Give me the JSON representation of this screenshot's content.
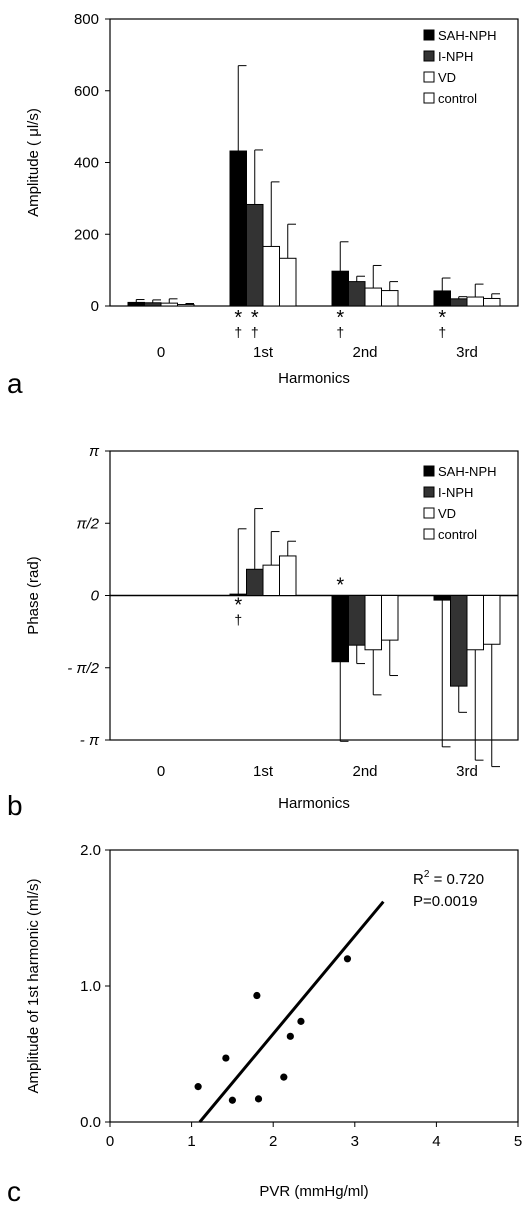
{
  "chart_data": [
    {
      "panel": "a",
      "type": "bar",
      "categories": [
        "0",
        "1st",
        "2nd",
        "3rd"
      ],
      "xlabel": "Harmonics",
      "ylabel": "Amplitude ( μl/s)",
      "ylim": [
        0,
        800
      ],
      "yticks": [
        "0",
        "200",
        "400",
        "600",
        "800"
      ],
      "legend_position": "top-right",
      "series": [
        {
          "name": "SAH-NPH",
          "fill": "#000000",
          "values": [
            10,
            432,
            97,
            42
          ],
          "err": [
            8,
            238,
            82,
            36
          ]
        },
        {
          "name": "I-NPH",
          "fill": "#333333",
          "values": [
            9,
            283,
            68,
            20
          ],
          "err": [
            8,
            152,
            15,
            6
          ]
        },
        {
          "name": "VD",
          "fill": "#ffffff",
          "values": [
            8,
            166,
            50,
            25
          ],
          "err": [
            12,
            180,
            63,
            36
          ]
        },
        {
          "name": "control",
          "fill": "#ffffff",
          "values": [
            4,
            133,
            43,
            21
          ],
          "err": [
            3,
            95,
            25,
            13
          ]
        }
      ],
      "significance": [
        {
          "category": "1st",
          "series": "SAH-NPH",
          "marks": [
            "*",
            "†"
          ]
        },
        {
          "category": "1st",
          "series": "I-NPH",
          "marks": [
            "*",
            "†"
          ]
        },
        {
          "category": "2nd",
          "series": "SAH-NPH",
          "marks": [
            "*",
            "†"
          ]
        },
        {
          "category": "3rd",
          "series": "SAH-NPH",
          "marks": [
            "*",
            "†"
          ]
        }
      ]
    },
    {
      "panel": "b",
      "type": "bar",
      "categories": [
        "0",
        "1st",
        "2nd",
        "3rd"
      ],
      "xlabel": "Harmonics",
      "ylabel": "Phase (rad)",
      "ylim": [
        -3.1416,
        3.1416
      ],
      "yticks": [
        "π",
        "π/2",
        "0",
        "- π/2",
        "- π"
      ],
      "legend_position": "top-right",
      "series": [
        {
          "name": "SAH-NPH",
          "fill": "#000000",
          "values": [
            null,
            0.03,
            -1.44,
            -0.1
          ],
          "err": [
            null,
            1.42,
            1.73,
            3.19
          ]
        },
        {
          "name": "I-NPH",
          "fill": "#333333",
          "values": [
            null,
            0.57,
            -1.08,
            -1.97
          ],
          "err": [
            null,
            1.32,
            0.4,
            0.57
          ]
        },
        {
          "name": "VD",
          "fill": "#ffffff",
          "values": [
            null,
            0.66,
            -1.18,
            -1.18
          ],
          "err": [
            null,
            0.73,
            0.98,
            2.4
          ]
        },
        {
          "name": "control",
          "fill": "#ffffff",
          "values": [
            null,
            0.86,
            -0.97,
            -1.06
          ],
          "err": [
            null,
            0.32,
            0.77,
            2.66
          ]
        }
      ],
      "significance": [
        {
          "category": "1st",
          "series": "SAH-NPH",
          "marks": [
            "*",
            "†"
          ]
        },
        {
          "category": "2nd",
          "series": "SAH-NPH",
          "marks": [
            "*"
          ]
        }
      ]
    },
    {
      "panel": "c",
      "type": "scatter",
      "xlabel": "PVR  (mmHg/ml)",
      "ylabel": "Amplitude of 1st harmonic  (ml/s)",
      "xlim": [
        0,
        5
      ],
      "ylim": [
        0,
        2
      ],
      "xticks": [
        "0",
        "1",
        "2",
        "3",
        "4",
        "5"
      ],
      "yticks": [
        "0.0",
        "1.0",
        "2.0"
      ],
      "points": [
        {
          "x": 1.08,
          "y": 0.26
        },
        {
          "x": 1.42,
          "y": 0.47
        },
        {
          "x": 1.5,
          "y": 0.16
        },
        {
          "x": 1.8,
          "y": 0.93
        },
        {
          "x": 1.82,
          "y": 0.17
        },
        {
          "x": 2.13,
          "y": 0.33
        },
        {
          "x": 2.21,
          "y": 0.63
        },
        {
          "x": 2.34,
          "y": 0.74
        },
        {
          "x": 2.91,
          "y": 1.2
        }
      ],
      "fit_line": [
        {
          "x": 1.1,
          "y": 0.0
        },
        {
          "x": 3.35,
          "y": 1.62
        }
      ],
      "stats": {
        "r2_prefix": "R",
        "r2_sup": "2",
        "r2_value": " = 0.720",
        "p_text": "P=0.0019"
      }
    }
  ]
}
